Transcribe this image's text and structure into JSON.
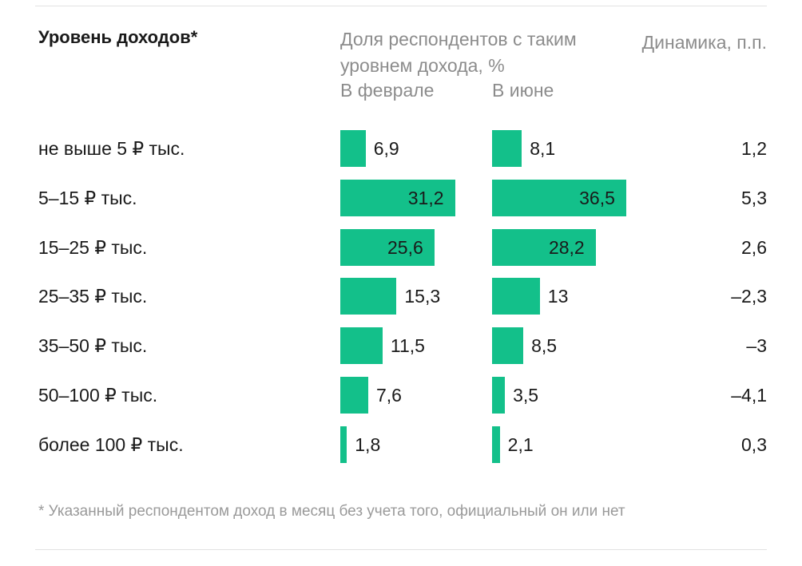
{
  "header": {
    "income_label": "Уровень доходов*",
    "share_label": "Доля респондентов с таким уровнем дохода, %",
    "feb_label": "В феврале",
    "jun_label": "В июне",
    "dynamics_label": "Динамика, п.п."
  },
  "footnote": "* Указанный респондентом доход в месяц без учета того, официальный он или нет",
  "colors": {
    "bar": "#13c08a",
    "muted": "#8c8c8c"
  },
  "chart_data": {
    "type": "bar",
    "orientation": "horizontal",
    "categories": [
      "не выше 5 ₽ тыс.",
      "5–15 ₽ тыс.",
      "15–25 ₽ тыс.",
      "25–35 ₽ тыс.",
      "35–50 ₽ тыс.",
      "50–100 ₽ тыс.",
      "более 100 ₽ тыс."
    ],
    "series": [
      {
        "name": "В феврале",
        "values": [
          6.9,
          31.2,
          25.6,
          15.3,
          11.5,
          7.6,
          1.8
        ],
        "labels": [
          "6,9",
          "31,2",
          "25,6",
          "15,3",
          "11,5",
          "7,6",
          "1,8"
        ]
      },
      {
        "name": "В июне",
        "values": [
          8.1,
          36.5,
          28.2,
          13,
          8.5,
          3.5,
          2.1
        ],
        "labels": [
          "8,1",
          "36,5",
          "28,2",
          "13",
          "8,5",
          "3,5",
          "2,1"
        ]
      }
    ],
    "dynamics": {
      "values": [
        1.2,
        5.3,
        2.6,
        -2.3,
        -3,
        -4.1,
        0.3
      ],
      "labels": [
        "1,2",
        "5,3",
        "2,6",
        "–2,3",
        "–3",
        "–4,1",
        "0,3"
      ]
    },
    "xlim": [
      0,
      40
    ],
    "grid": false,
    "legend": "none"
  }
}
